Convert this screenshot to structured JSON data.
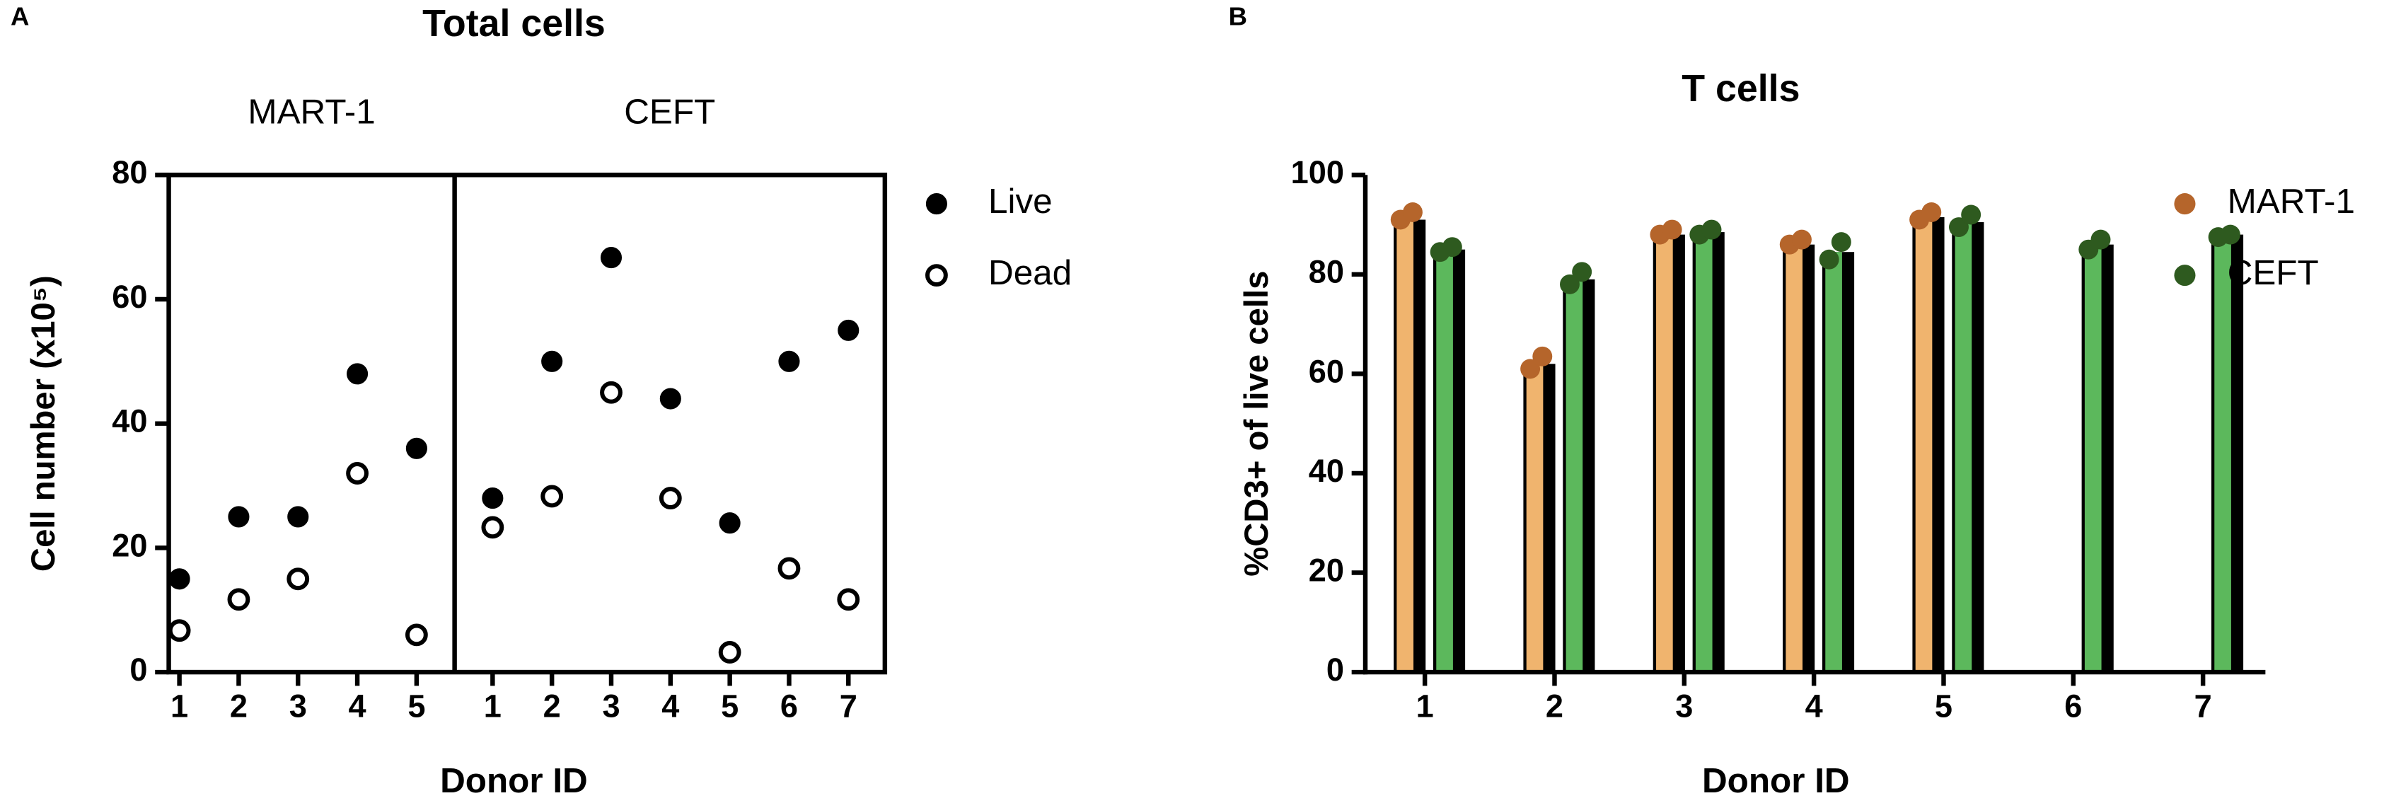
{
  "chart_data": [
    {
      "panel": "A",
      "type": "scatter",
      "title": "Total cells",
      "y_label": "Cell number (x10⁵)",
      "x_label": "Donor ID",
      "ylim": [
        0,
        80
      ],
      "yticks": [
        0,
        20,
        40,
        60,
        80
      ],
      "facets": [
        {
          "name": "MART-1",
          "categories": [
            "1",
            "2",
            "3",
            "4",
            "5"
          ]
        },
        {
          "name": "CEFT",
          "categories": [
            "1",
            "2",
            "3",
            "4",
            "5",
            "6",
            "7"
          ]
        }
      ],
      "series": [
        {
          "name": "Live",
          "color": "#000000",
          "filled": true,
          "values": [
            [
              15,
              25,
              25,
              48,
              36
            ],
            [
              28,
              50,
              66.7,
              44,
              24,
              50,
              55
            ]
          ]
        },
        {
          "name": "Dead",
          "color": "#000000",
          "filled": false,
          "values": [
            [
              6.7,
              11.7,
              15,
              32,
              6
            ],
            [
              23.3,
              28.3,
              45,
              28,
              3.2,
              16.7,
              11.7
            ]
          ]
        }
      ]
    },
    {
      "panel": "B",
      "type": "bar",
      "title": "T cells",
      "y_label": "%CD3+ of live cells",
      "x_label": "Donor ID",
      "ylim": [
        0,
        100
      ],
      "yticks": [
        0,
        20,
        40,
        60,
        80,
        100
      ],
      "categories": [
        "1",
        "2",
        "3",
        "4",
        "5",
        "6",
        "7"
      ],
      "series": [
        {
          "name": "MART-1",
          "color": "#f0b46e",
          "point_color": "#b5652b",
          "values": [
            91,
            62,
            88,
            86,
            91.5,
            null,
            null
          ],
          "points": [
            [
              91,
              92.5
            ],
            [
              61,
              63.5
            ],
            [
              88,
              89
            ],
            [
              86,
              87
            ],
            [
              91,
              92.5
            ],
            null,
            null
          ]
        },
        {
          "name": "CEFT",
          "color": "#5cb85c",
          "point_color": "#2e5a1f",
          "values": [
            85,
            79,
            88.5,
            84.5,
            90.5,
            86,
            88
          ],
          "points": [
            [
              84.5,
              85.5
            ],
            [
              78,
              80.5
            ],
            [
              88,
              89
            ],
            [
              83,
              86.5
            ],
            [
              89.5,
              92
            ],
            [
              85,
              87
            ],
            [
              87.5,
              88
            ]
          ]
        }
      ]
    }
  ]
}
